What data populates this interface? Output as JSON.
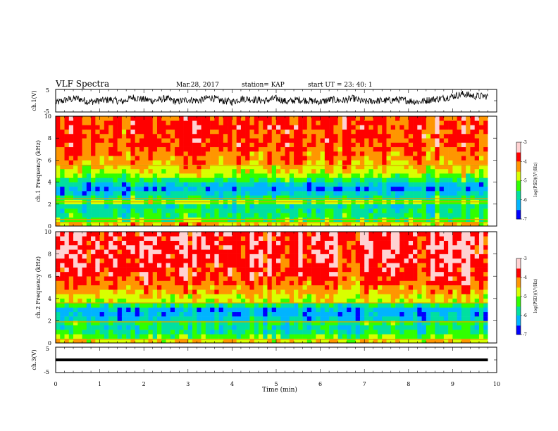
{
  "header": {
    "title": "VLF Spectra",
    "date": "Mar.28, 2017",
    "station": "station= KAP",
    "start": "start UT =  23: 40: 1"
  },
  "colors": {
    "spectrogram_scale": [
      "#000000",
      "#0000ff",
      "#00b4ff",
      "#00e0a0",
      "#30ff00",
      "#d8ff00",
      "#ff9600",
      "#ff0000",
      "#ffd2d2",
      "#ffffff"
    ]
  },
  "chart_data": [
    {
      "type": "line",
      "name": "ch1-waveform",
      "ylabel": "ch.1(V)",
      "ylim": [
        -5,
        5
      ],
      "yticks": [
        "5",
        "-5"
      ],
      "xlim": [
        0,
        9.8
      ],
      "x": [
        0,
        0.25,
        0.5,
        0.75,
        1.0,
        1.25,
        1.5,
        1.75,
        2.0,
        2.25,
        2.5,
        2.75,
        3.0,
        3.25,
        3.5,
        3.75,
        4.0,
        4.25,
        4.5,
        4.75,
        5.0,
        5.25,
        5.5,
        5.75,
        6.0,
        6.25,
        6.5,
        6.75,
        7.0,
        7.25,
        7.5,
        7.75,
        8.0,
        8.25,
        8.5,
        8.75,
        9.0,
        9.25,
        9.5,
        9.8
      ],
      "values": [
        -1.0,
        0.5,
        1.0,
        -0.5,
        0.0,
        0.5,
        -0.5,
        1.5,
        0.5,
        0.0,
        1.0,
        -0.5,
        0.5,
        0.0,
        1.5,
        0.0,
        -0.5,
        1.0,
        0.5,
        0.0,
        1.0,
        -0.5,
        0.5,
        0.0,
        -0.5,
        0.5,
        0.0,
        1.0,
        -0.5,
        0.0,
        0.0,
        0.5,
        0.0,
        -0.5,
        0.5,
        1.0,
        2.0,
        3.0,
        2.0,
        2.0
      ]
    },
    {
      "type": "heatmap",
      "name": "ch1-spectrogram",
      "ylabel": "ch.1 Frequency (kHz)",
      "ylim": [
        0,
        10
      ],
      "yticks": [
        "0",
        "2",
        "4",
        "6",
        "8",
        "10"
      ],
      "xlim": [
        0,
        9.8
      ],
      "colorbar": {
        "label": "log(PSD)(V²/Hz)",
        "range": [
          -7,
          -3
        ],
        "ticks": [
          "-3",
          "-4",
          "-5",
          "-6",
          "-7"
        ]
      },
      "freq_kHz": [
        0.2,
        0.6,
        1.0,
        1.4,
        1.8,
        2.2,
        2.6,
        3.0,
        3.4,
        3.8,
        4.2,
        4.6,
        5.0,
        5.4,
        5.8,
        6.2,
        6.6,
        7.0,
        7.4,
        7.8,
        8.2,
        8.6,
        9.0,
        9.4,
        9.8
      ],
      "log_psd": [
        -4.5,
        -5.3,
        -5.5,
        -5.6,
        -5.8,
        -5.0,
        -5.6,
        -6.0,
        -6.3,
        -6.0,
        -5.5,
        -5.0,
        -4.7,
        -4.5,
        -4.3,
        -4.2,
        -4.1,
        -4.0,
        -3.9,
        -3.9,
        -3.9,
        -3.9,
        -3.8,
        -3.9,
        -3.9
      ],
      "lines_kHz": [
        0.3,
        0.6,
        2.2,
        2.5,
        5.5
      ]
    },
    {
      "type": "heatmap",
      "name": "ch2-spectrogram",
      "ylabel": "ch.2 Frequency (kHz)",
      "ylim": [
        0,
        10
      ],
      "yticks": [
        "0",
        "2",
        "4",
        "6",
        "8",
        "10"
      ],
      "xlim": [
        0,
        9.8
      ],
      "colorbar": {
        "label": "log(PSD)(V²/Hz)",
        "range": [
          -7,
          -3
        ],
        "ticks": [
          "-3",
          "-4",
          "-5",
          "-6",
          "-7"
        ]
      },
      "freq_kHz": [
        0.2,
        0.6,
        1.0,
        1.4,
        1.8,
        2.2,
        2.6,
        3.0,
        3.4,
        3.8,
        4.2,
        4.6,
        5.0,
        5.4,
        5.8,
        6.2,
        6.6,
        7.0,
        7.4,
        7.8,
        8.2,
        8.6,
        9.0,
        9.4,
        9.8
      ],
      "log_psd": [
        -4.6,
        -5.2,
        -5.6,
        -5.7,
        -5.5,
        -6.0,
        -6.2,
        -6.2,
        -5.6,
        -4.8,
        -4.6,
        -4.4,
        -4.2,
        -4.0,
        -3.9,
        -3.8,
        -3.8,
        -3.7,
        -3.7,
        -3.6,
        -3.6,
        -3.6,
        -3.6,
        -3.6,
        -3.6
      ],
      "lines_kHz": [
        0.3,
        1.9,
        3.6
      ]
    },
    {
      "type": "line",
      "name": "ch3-waveform",
      "ylabel": "ch.3(V)",
      "ylim": [
        -5,
        5
      ],
      "yticks": [
        "5",
        "-5"
      ],
      "xlim": [
        0,
        9.8
      ],
      "x": [
        0,
        9.8
      ],
      "values": [
        0,
        0
      ]
    }
  ],
  "xaxis": {
    "label": "Time (min)",
    "range": [
      0,
      10
    ],
    "ticks": [
      "0",
      "1",
      "2",
      "3",
      "4",
      "5",
      "6",
      "7",
      "8",
      "9",
      "10"
    ]
  }
}
